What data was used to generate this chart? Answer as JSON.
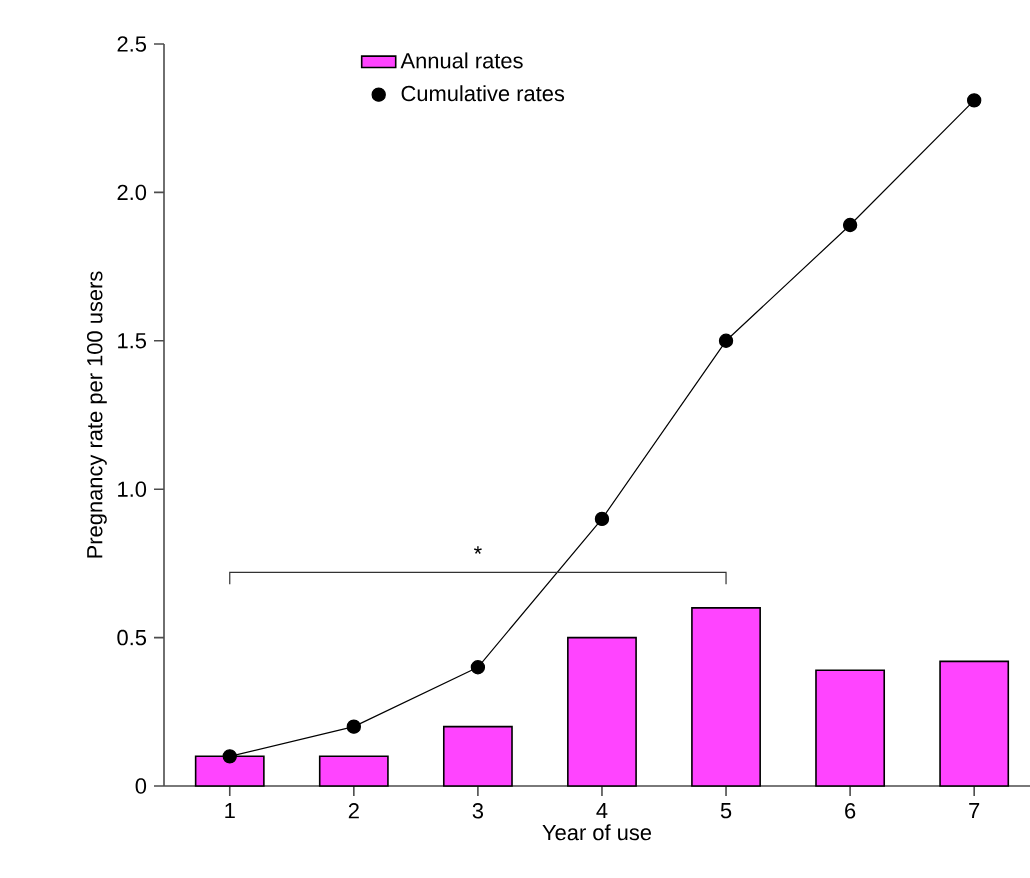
{
  "chart_data": {
    "type": "line",
    "xlabel": "Year of use",
    "ylabel": "Pregnancy rate per 100 users",
    "categories": [
      "1",
      "2",
      "3",
      "4",
      "5",
      "6",
      "7"
    ],
    "series": [
      {
        "name": "Annual rates",
        "type": "bar",
        "color": "#ff44ff",
        "values": [
          0.1,
          0.1,
          0.2,
          0.5,
          0.6,
          0.39,
          0.42
        ]
      },
      {
        "name": "Cumulative rates",
        "color": "#000000",
        "values": [
          0.1,
          0.2,
          0.4,
          0.9,
          1.5,
          1.89,
          2.31
        ]
      }
    ],
    "marker": "circle",
    "ylim": [
      0,
      2.5
    ],
    "yticks": [
      0,
      0.5,
      {
        "value": 1,
        "label": "1.0"
      },
      1.5,
      {
        "value": 2,
        "label": "2.0"
      },
      2.5
    ],
    "legend": "top left",
    "annotations": [
      "*"
    ]
  }
}
